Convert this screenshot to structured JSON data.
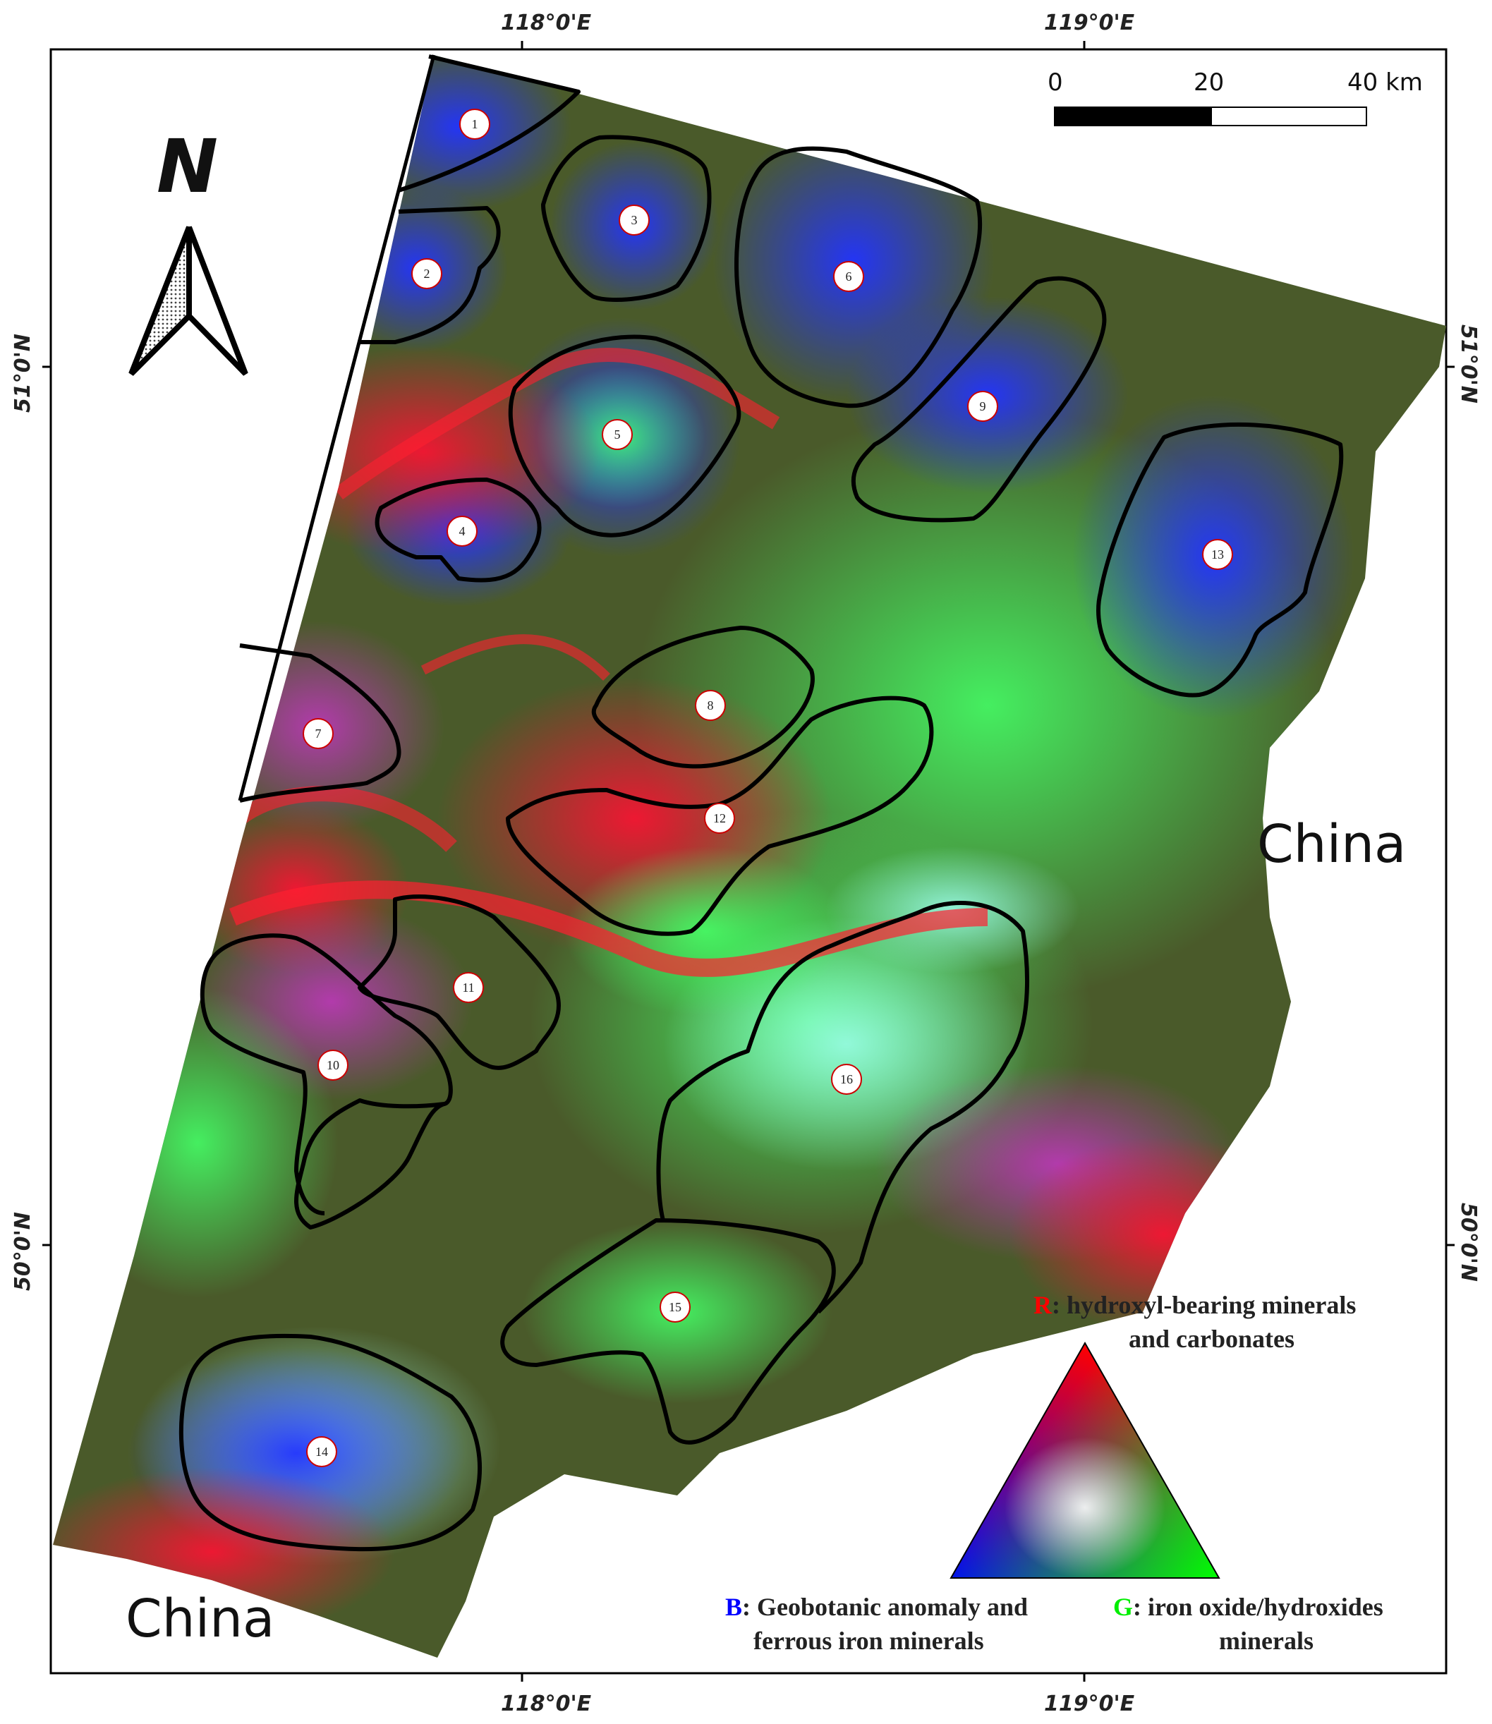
{
  "graticule": {
    "top_labels": [
      "118°0'E",
      "119°0'E"
    ],
    "bottom_labels": [
      "118°0'E",
      "119°0'E"
    ],
    "left_labels": [
      "51°0'N",
      "50°0'N"
    ],
    "right_labels": [
      "51°0'N",
      "50°0'N"
    ]
  },
  "north_arrow": {
    "label": "N",
    "icon": "north-arrow-icon"
  },
  "scale_bar": {
    "labels": [
      "0",
      "20",
      "40 km"
    ]
  },
  "countries": [
    "China",
    "China"
  ],
  "regions": [
    "1",
    "2",
    "3",
    "4",
    "5",
    "6",
    "7",
    "8",
    "9",
    "10",
    "11",
    "12",
    "13",
    "14",
    "15",
    "16"
  ],
  "legend": {
    "r_letter": "R",
    "r_text_line1": ": hydroxyl-bearing minerals",
    "r_text_line2": "and carbonates",
    "b_letter": "B",
    "b_text_line1": ": Geobotanic anomaly and",
    "b_text_line2": "ferrous iron minerals",
    "g_letter": "G",
    "g_text_line1": ": iron oxide/hydroxides",
    "g_text_line2": "minerals",
    "colors": {
      "red": "#ff0000",
      "green": "#00ee00",
      "blue": "#0000ff"
    }
  }
}
